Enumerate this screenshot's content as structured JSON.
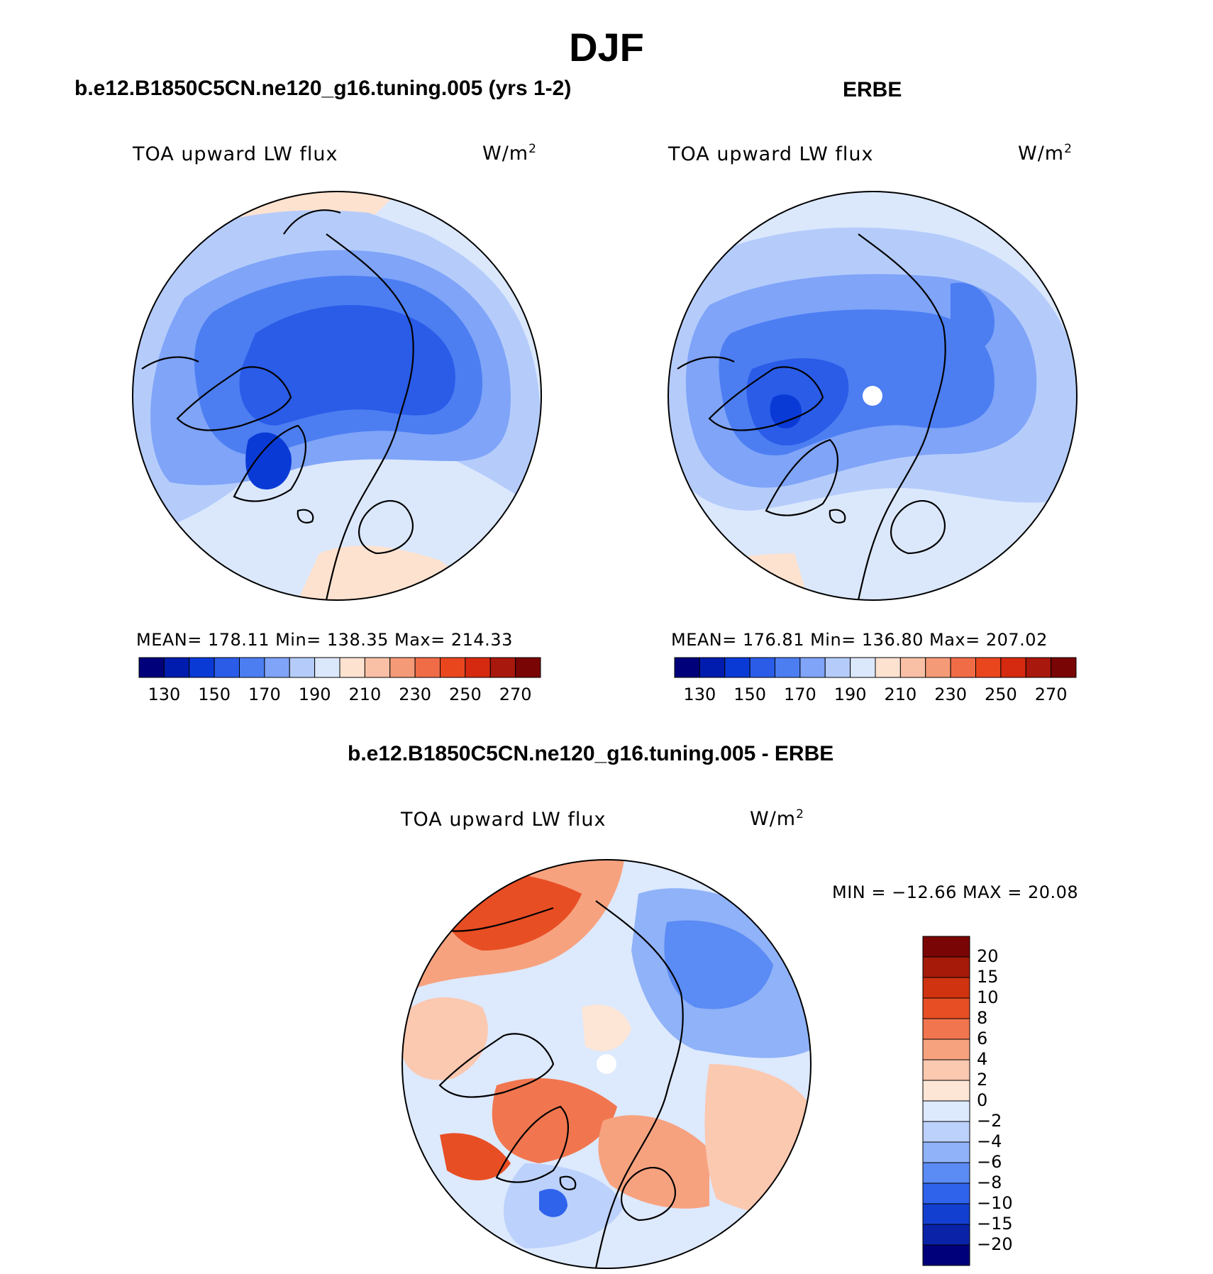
{
  "title": "DJF",
  "colors": {
    "abs_scale": [
      "#00007a",
      "#001cae",
      "#0a3ad6",
      "#2a5ce8",
      "#4c7ef2",
      "#7fa4f8",
      "#b5ccfb",
      "#dbe8fc",
      "#fde2d0",
      "#f9c0a6",
      "#f59a77",
      "#f06c47",
      "#e9461e",
      "#d62a10",
      "#a9180c",
      "#7a0505"
    ],
    "diff_scale": [
      "#00007a",
      "#0a22a8",
      "#123fd0",
      "#2f63ec",
      "#5b8bf4",
      "#8fb2f8",
      "#bcd1fb",
      "#dde9fd",
      "#fde6d6",
      "#fbc8b0",
      "#f7a27f",
      "#f1764f",
      "#e84e24",
      "#cf3310",
      "#a51a09",
      "#7a0505"
    ]
  },
  "panels": [
    {
      "title": "b.e12.B1850C5CN.ne120_g16.tuning.005 (yrs 1-2)",
      "variable": "TOA upward LW flux",
      "units_base": "W/m",
      "units_exp": "2",
      "stats": "MEAN= 178.11   Min= 138.35   Max= 214.33"
    },
    {
      "title": "ERBE",
      "variable": "TOA upward LW flux",
      "units_base": "W/m",
      "units_exp": "2",
      "stats": "MEAN= 176.81   Min= 136.80   Max= 207.02"
    },
    {
      "title": "b.e12.B1850C5CN.ne120_g16.tuning.005 - ERBE",
      "variable": "TOA upward LW flux",
      "units_base": "W/m",
      "units_exp": "2",
      "stats": "MIN = −12.66 MAX =   20.08"
    }
  ],
  "chart_data": [
    {
      "type": "heatmap",
      "projection": "north-polar-stereographic",
      "title": "b.e12.B1850C5CN.ne120_g16.tuning.005 (yrs 1-2)",
      "variable": "TOA upward LW flux",
      "units": "W/m2",
      "mean": 178.11,
      "min": 138.35,
      "max": 214.33,
      "colorbar_ticks": [
        "130",
        "150",
        "170",
        "190",
        "210",
        "230",
        "250",
        "270"
      ],
      "levels": [
        130,
        140,
        150,
        160,
        170,
        180,
        190,
        200,
        210,
        220,
        230,
        240,
        250,
        260,
        270
      ]
    },
    {
      "type": "heatmap",
      "projection": "north-polar-stereographic",
      "title": "ERBE",
      "variable": "TOA upward LW flux",
      "units": "W/m2",
      "mean": 176.81,
      "min": 136.8,
      "max": 207.02,
      "colorbar_ticks": [
        "130",
        "150",
        "170",
        "190",
        "210",
        "230",
        "250",
        "270"
      ],
      "levels": [
        130,
        140,
        150,
        160,
        170,
        180,
        190,
        200,
        210,
        220,
        230,
        240,
        250,
        260,
        270
      ]
    },
    {
      "type": "heatmap",
      "projection": "north-polar-stereographic",
      "title": "b.e12.B1850C5CN.ne120_g16.tuning.005 - ERBE",
      "variable": "TOA upward LW flux",
      "units": "W/m2",
      "min": -12.66,
      "max": 20.08,
      "colorbar_ticks": [
        "20",
        "15",
        "10",
        "8",
        "6",
        "4",
        "2",
        "0",
        "−2",
        "−4",
        "−6",
        "−8",
        "−10",
        "−15",
        "−20"
      ]
    }
  ]
}
